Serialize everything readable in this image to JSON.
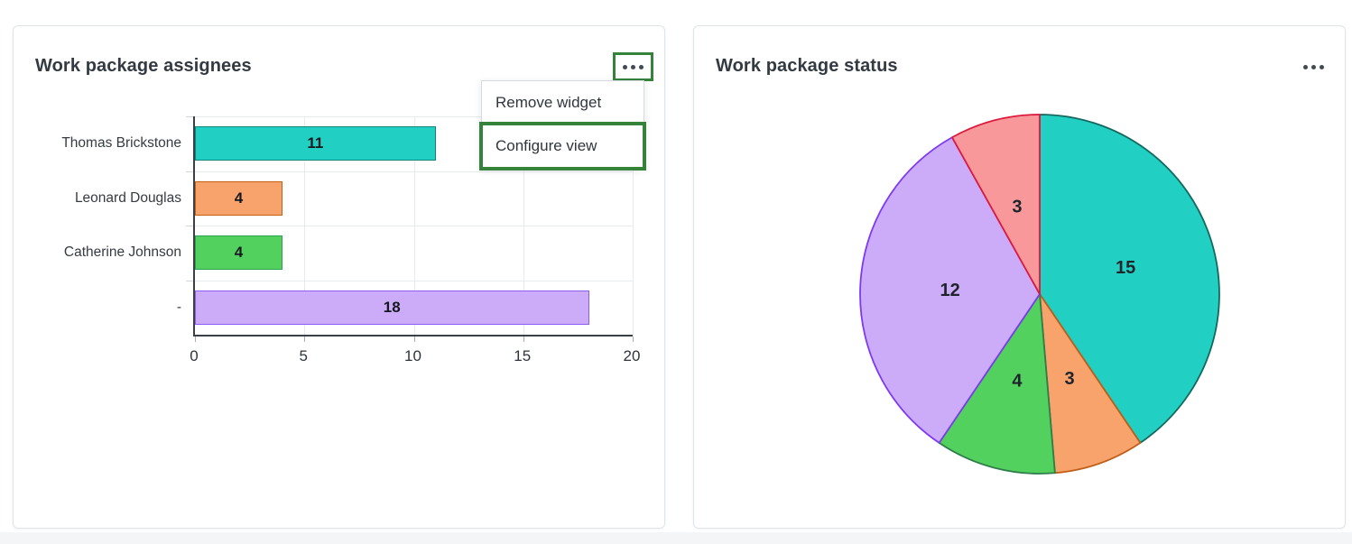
{
  "page": {
    "background": "#ffffff",
    "accent_green": "#35823B"
  },
  "widgets": {
    "assignees": {
      "title": "Work package assignees",
      "menu_button_icon": "ellipsis-icon",
      "menu": {
        "items": [
          {
            "label": "Remove widget",
            "focused": false
          },
          {
            "label": "Configure view",
            "focused": true
          }
        ]
      }
    },
    "status": {
      "title": "Work package status",
      "menu_button_icon": "ellipsis-icon"
    }
  },
  "chart_data": [
    {
      "type": "bar",
      "title": "Work package assignees",
      "orientation": "horizontal",
      "categories": [
        "Thomas Brickstone",
        "Leonard Douglas",
        "Catherine Johnson",
        "-"
      ],
      "values": [
        11,
        4,
        4,
        18
      ],
      "bar_fill_colors": [
        "#21d0c3",
        "#f8a36c",
        "#52d15e",
        "#ccabf8"
      ],
      "bar_border_colors": [
        "#128578",
        "#c05f17",
        "#2e9e4f",
        "#8b5cf6"
      ],
      "xlabel": "",
      "ylabel": "",
      "xlim": [
        0,
        20
      ],
      "xticks": [
        0,
        5,
        10,
        15,
        20
      ],
      "grid": true,
      "value_labels": "inside-center"
    },
    {
      "type": "pie",
      "title": "Work package status",
      "values": [
        15,
        3,
        4,
        12,
        3
      ],
      "slice_fill_colors": [
        "#21d0c3",
        "#f8a36c",
        "#52d15e",
        "#ccabf8",
        "#f8989b"
      ],
      "slice_border_colors": [
        "#14695f",
        "#c05f17",
        "#2e7d4b",
        "#7d3af2",
        "#dc1a3c"
      ],
      "total": 37,
      "start_angle": "12-oclock",
      "direction": "clockwise",
      "value_labels": "inside",
      "label_radius_fraction": 0.5
    }
  ]
}
